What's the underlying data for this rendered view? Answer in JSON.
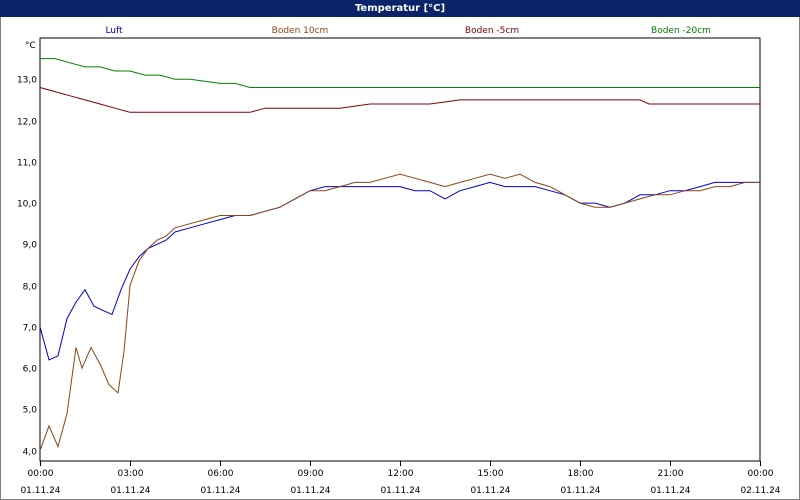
{
  "window": {
    "title": "Temperatur [°C]"
  },
  "chart_data": {
    "type": "line",
    "title": "Temperatur [°C]",
    "ylabel": "°C",
    "xlabel": "",
    "ylim": [
      3.75,
      14.0
    ],
    "xlim": [
      0,
      24
    ],
    "y_ticks": [
      4.0,
      5.0,
      6.0,
      7.0,
      8.0,
      9.0,
      10.0,
      11.0,
      12.0,
      13.0
    ],
    "y_tick_labels": [
      "4,0",
      "5,0",
      "6,0",
      "7,0",
      "8,0",
      "9,0",
      "10,0",
      "11,0",
      "12,0",
      "13,0"
    ],
    "x_ticks": [
      {
        "time": "00:00",
        "date": "01.11.24"
      },
      {
        "time": "03:00",
        "date": "01.11.24"
      },
      {
        "time": "06:00",
        "date": "01.11.24"
      },
      {
        "time": "09:00",
        "date": "01.11.24"
      },
      {
        "time": "12:00",
        "date": "01.11.24"
      },
      {
        "time": "15:00",
        "date": "01.11.24"
      },
      {
        "time": "18:00",
        "date": "01.11.24"
      },
      {
        "time": "21:00",
        "date": "01.11.24"
      },
      {
        "time": "00:00",
        "date": "02.11.24"
      }
    ],
    "grid": true,
    "legend_position": "top",
    "series": [
      {
        "name": "Luft",
        "color": "#0000cc",
        "x": [
          0,
          0.3,
          0.6,
          0.9,
          1.2,
          1.5,
          1.8,
          2.1,
          2.4,
          2.7,
          3.0,
          3.3,
          3.6,
          3.9,
          4.2,
          4.5,
          5.0,
          5.5,
          6.0,
          6.5,
          7.0,
          7.5,
          8.0,
          8.5,
          9.0,
          9.5,
          10.0,
          11.0,
          12.0,
          12.5,
          13.0,
          13.5,
          14.0,
          14.5,
          15.0,
          15.5,
          16.0,
          16.5,
          17.0,
          17.5,
          18.0,
          18.5,
          19.0,
          19.5,
          20.0,
          20.5,
          21.0,
          21.5,
          22.0,
          22.5,
          23.0,
          23.5,
          24.0
        ],
        "y": [
          7.0,
          6.2,
          6.3,
          7.2,
          7.6,
          7.9,
          7.5,
          7.4,
          7.3,
          7.9,
          8.4,
          8.7,
          8.9,
          9.0,
          9.1,
          9.3,
          9.4,
          9.5,
          9.6,
          9.7,
          9.7,
          9.8,
          9.9,
          10.1,
          10.3,
          10.4,
          10.4,
          10.4,
          10.4,
          10.3,
          10.3,
          10.1,
          10.3,
          10.4,
          10.5,
          10.4,
          10.4,
          10.4,
          10.3,
          10.2,
          10.0,
          10.0,
          9.9,
          10.0,
          10.2,
          10.2,
          10.3,
          10.3,
          10.4,
          10.5,
          10.5,
          10.5,
          10.5
        ]
      },
      {
        "name": "Boden 10cm",
        "color": "#8b4513",
        "x": [
          0,
          0.3,
          0.6,
          0.9,
          1.2,
          1.4,
          1.7,
          2.0,
          2.3,
          2.6,
          2.8,
          3.0,
          3.3,
          3.6,
          3.9,
          4.2,
          4.5,
          5.0,
          5.5,
          6.0,
          6.5,
          7.0,
          7.5,
          8.0,
          8.5,
          9.0,
          9.5,
          10.0,
          10.5,
          11.0,
          11.5,
          12.0,
          12.5,
          13.0,
          13.5,
          14.0,
          14.5,
          15.0,
          15.5,
          16.0,
          16.5,
          17.0,
          17.5,
          18.0,
          18.5,
          19.0,
          19.5,
          20.0,
          20.5,
          21.0,
          21.5,
          22.0,
          22.5,
          23.0,
          23.5,
          24.0
        ],
        "y": [
          4.0,
          4.6,
          4.1,
          4.9,
          6.5,
          6.0,
          6.5,
          6.1,
          5.6,
          5.4,
          6.4,
          8.0,
          8.6,
          8.9,
          9.1,
          9.2,
          9.4,
          9.5,
          9.6,
          9.7,
          9.7,
          9.7,
          9.8,
          9.9,
          10.1,
          10.3,
          10.3,
          10.4,
          10.5,
          10.5,
          10.6,
          10.7,
          10.6,
          10.5,
          10.4,
          10.5,
          10.6,
          10.7,
          10.6,
          10.7,
          10.5,
          10.4,
          10.2,
          10.0,
          9.9,
          9.9,
          10.0,
          10.1,
          10.2,
          10.2,
          10.3,
          10.3,
          10.4,
          10.4,
          10.5,
          10.5
        ]
      },
      {
        "name": "Boden -5cm",
        "color": "#800000",
        "x": [
          0,
          0.5,
          1.0,
          1.5,
          2.0,
          2.5,
          3.0,
          4.0,
          5.0,
          6.0,
          7.0,
          7.5,
          8.0,
          9.0,
          10.0,
          11.0,
          12.0,
          13.0,
          14.0,
          15.0,
          16.0,
          17.0,
          18.0,
          19.0,
          20.0,
          20.3,
          21.0,
          22.0,
          23.0,
          24.0
        ],
        "y": [
          12.8,
          12.7,
          12.6,
          12.5,
          12.4,
          12.3,
          12.2,
          12.2,
          12.2,
          12.2,
          12.2,
          12.3,
          12.3,
          12.3,
          12.3,
          12.4,
          12.4,
          12.4,
          12.5,
          12.5,
          12.5,
          12.5,
          12.5,
          12.5,
          12.5,
          12.4,
          12.4,
          12.4,
          12.4,
          12.4
        ]
      },
      {
        "name": "Boden -20cm",
        "color": "#008000",
        "x": [
          0,
          0.5,
          1.0,
          1.5,
          2.0,
          2.5,
          3.0,
          3.5,
          4.0,
          4.5,
          5.0,
          6.0,
          6.5,
          7.0,
          8.0,
          10.0,
          12.0,
          14.0,
          16.0,
          18.0,
          20.0,
          22.0,
          24.0
        ],
        "y": [
          13.5,
          13.5,
          13.4,
          13.3,
          13.3,
          13.2,
          13.2,
          13.1,
          13.1,
          13.0,
          13.0,
          12.9,
          12.9,
          12.8,
          12.8,
          12.8,
          12.8,
          12.8,
          12.8,
          12.8,
          12.8,
          12.8,
          12.8
        ]
      }
    ]
  }
}
